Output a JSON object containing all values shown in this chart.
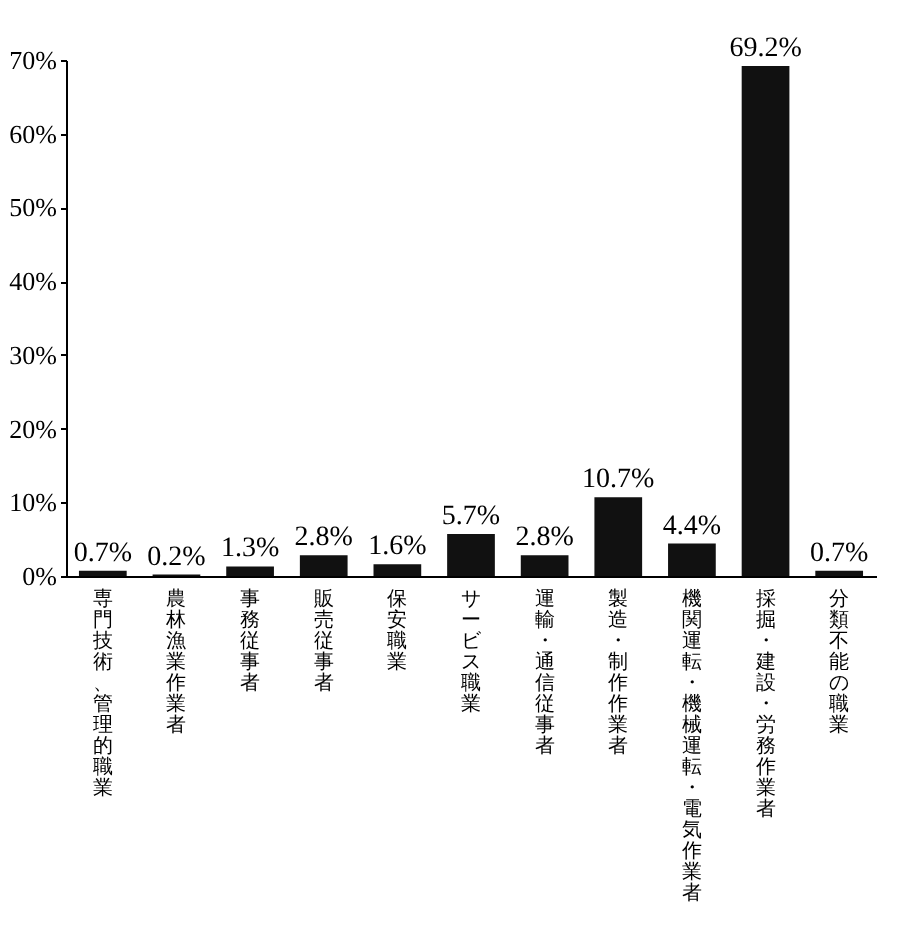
{
  "chart_data": {
    "type": "bar",
    "categories": [
      "専門技術、管理的職業",
      "農林漁業作業者",
      "事務従事者",
      "販売従事者",
      "保安職業",
      "サービス職業",
      "運輸・通信従事者",
      "製造・制作作業者",
      "機関運転・機械運転・電気作業者",
      "採掘・建設・労務作業者",
      "分類不能の職業"
    ],
    "values": [
      0.7,
      0.2,
      1.3,
      2.8,
      1.6,
      5.7,
      2.8,
      10.7,
      4.4,
      69.2,
      0.7
    ],
    "value_labels": [
      "0.7%",
      "0.2%",
      "1.3%",
      "2.8%",
      "1.6%",
      "5.7%",
      "2.8%",
      "10.7%",
      "4.4%",
      "69.2%",
      "0.7%"
    ],
    "color": "#111111",
    "ylim": [
      0,
      70
    ],
    "yticks": [
      {
        "value": 0,
        "label": "0%"
      },
      {
        "value": 10,
        "label": "10%"
      },
      {
        "value": 20,
        "label": "20%"
      },
      {
        "value": 30,
        "label": "30%"
      },
      {
        "value": 40,
        "label": "40%"
      },
      {
        "value": 50,
        "label": "50%"
      },
      {
        "value": 60,
        "label": "60%"
      },
      {
        "value": 70,
        "label": "70%"
      }
    ],
    "grid": false
  }
}
